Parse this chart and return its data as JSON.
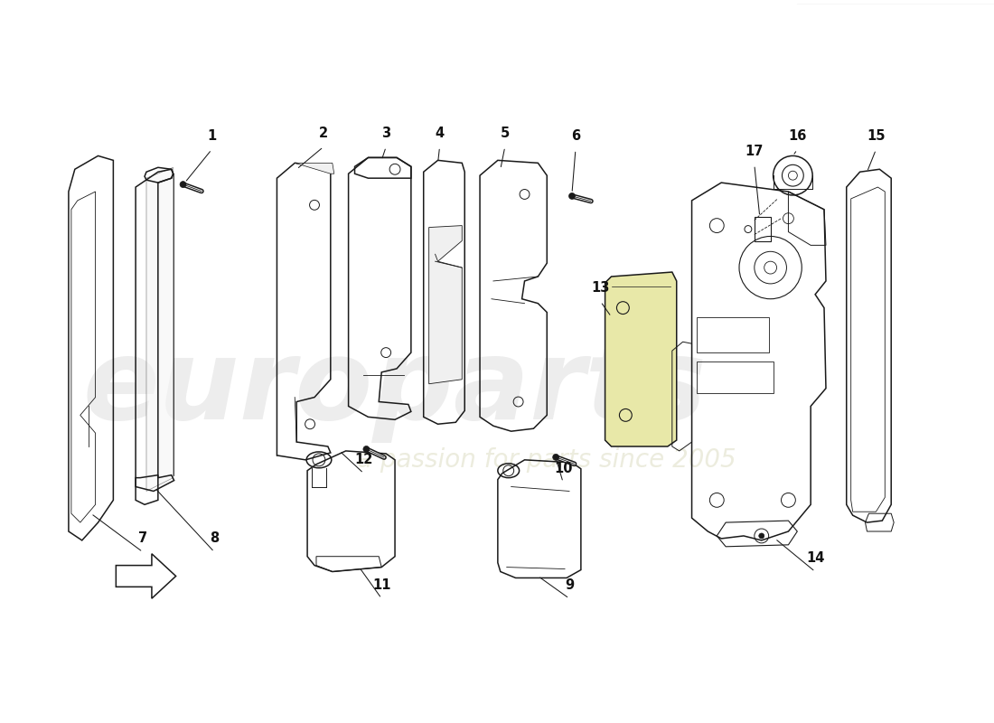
{
  "background_color": "#ffffff",
  "line_color": "#1a1a1a",
  "highlight_color": "#e8e8a8",
  "watermark1_color": "#d0d0d0",
  "watermark2_color": "#e0e0c8",
  "label_color": "#111111",
  "figsize": [
    11.0,
    8.0
  ],
  "dpi": 100
}
